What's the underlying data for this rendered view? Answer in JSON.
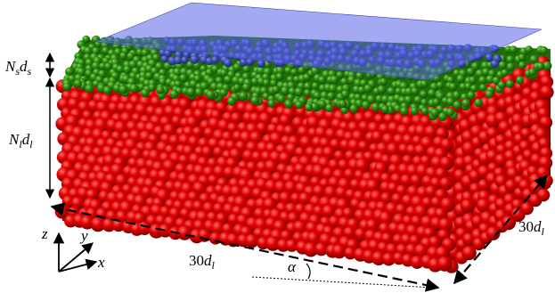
{
  "labels": {
    "small_layer": {
      "n": "N",
      "n_sub": "s",
      "d": "d",
      "d_sub": "s"
    },
    "large_layer": {
      "n": "N",
      "n_sub": "l",
      "d": "d",
      "d_sub": "l"
    },
    "length_front": {
      "value": "30",
      "d": "d",
      "d_sub": "l"
    },
    "length_side": {
      "value": "30",
      "d": "d",
      "d_sub": "l"
    },
    "angle": "α",
    "axes": {
      "x": "x",
      "y": "y",
      "z": "z"
    }
  },
  "colors": {
    "large_particles": "#d40000",
    "small_particles": "#2f8a12",
    "plane": "#5a64e6"
  }
}
